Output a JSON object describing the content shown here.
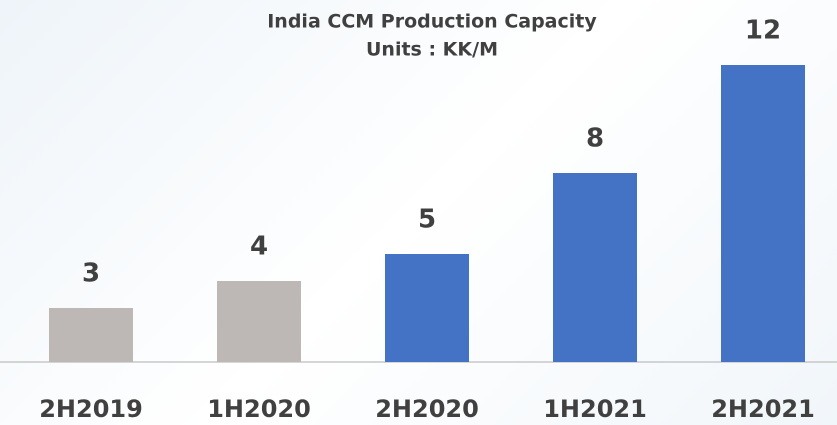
{
  "chart_data": {
    "type": "bar",
    "title": "India CCM Production Capacity",
    "subtitle": "Units : KK/M",
    "categories": [
      "2H2019",
      "1H2020",
      "2H2020",
      "1H2021",
      "2H2021"
    ],
    "values": [
      3,
      4,
      5,
      8,
      12
    ],
    "colors": [
      "#bdb7b5",
      "#bdb7b5",
      "#4472c4",
      "#4472c4",
      "#4472c4"
    ],
    "ylim": [
      1,
      13
    ]
  }
}
